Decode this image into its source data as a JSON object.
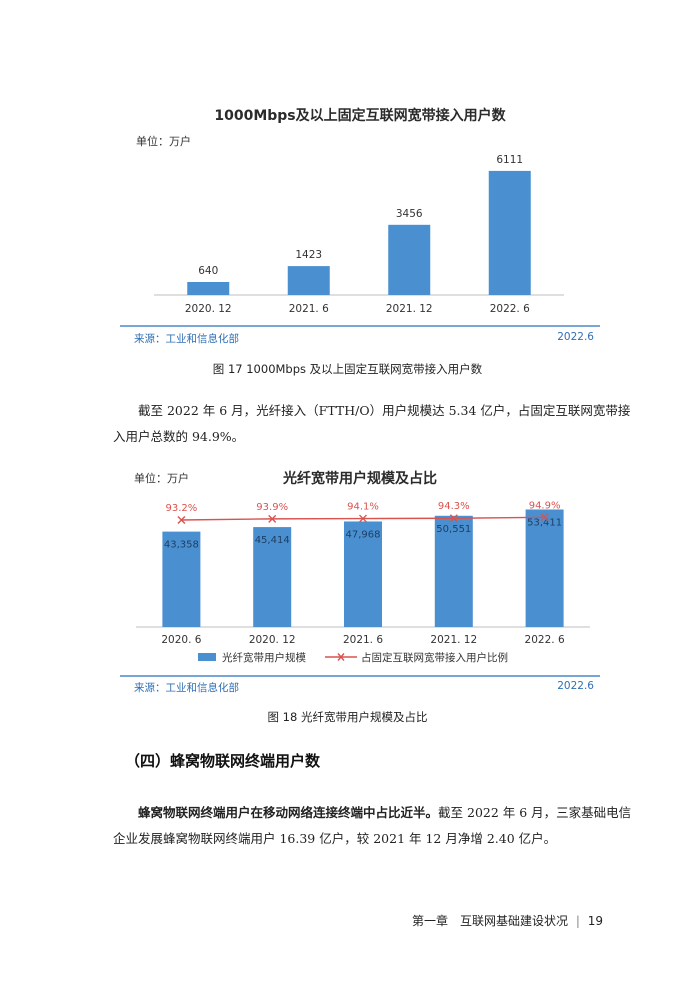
{
  "chart1": {
    "title": "1000Mbps及以上固定互联网宽带接入用户数",
    "unit": "单位：万户",
    "source": "来源：工业和信息化部",
    "source_date": "2022.6",
    "chart_data": {
      "type": "bar",
      "title": "1000Mbps及以上固定互联网宽带接入用户数",
      "categories": [
        "2020. 12",
        "2021. 6",
        "2021. 12",
        "2022. 6"
      ],
      "values": [
        640,
        1423,
        3456,
        6111
      ],
      "value_labels": [
        "640",
        "1423",
        "3456",
        "6111"
      ],
      "ylim": [
        0,
        6500
      ],
      "grid": false,
      "bar_color": "#4a90d0"
    }
  },
  "caption1": "图 17  1000Mbps 及以上固定互联网宽带接入用户数",
  "para1": "截至 2022 年 6 月，光纤接入（FTTH/O）用户规模达 5.34 亿户，占固定互联网宽带接入用户总数的 94.9%。",
  "chart2": {
    "title": "光纤宽带用户规模及占比",
    "unit": "单位：万户",
    "source": "来源：工业和信息化部",
    "source_date": "2022.6",
    "chart_data": {
      "type": "bar",
      "title": "光纤宽带用户规模及占比",
      "categories": [
        "2020. 6",
        "2020. 12",
        "2021. 6",
        "2021. 12",
        "2022. 6"
      ],
      "series": [
        {
          "name": "光纤宽带用户规模",
          "type": "bar",
          "values": [
            43358,
            45414,
            47968,
            50551,
            53411
          ],
          "labels": [
            "43,358",
            "45,414",
            "47,968",
            "50,551",
            "53,411"
          ]
        },
        {
          "name": "占固定互联网宽带接入用户比例",
          "type": "line",
          "values": [
            93.2,
            93.9,
            94.1,
            94.3,
            94.9
          ],
          "labels": [
            "93.2%",
            "93.9%",
            "94.1%",
            "94.3%",
            "94.9%"
          ]
        }
      ],
      "ylim": [
        0,
        56000
      ],
      "legend": "bottom",
      "bar_color": "#4a90d0",
      "line_color": "#d9534f"
    }
  },
  "caption2": "图 18  光纤宽带用户规模及占比",
  "section_title": "（四）蜂窝物联网终端用户数",
  "para2_bold": "蜂窝物联网终端用户在移动网络连接终端中占比近半。",
  "para2_rest": "截至 2022 年 6 月，三家基础电信企业发展蜂窝物联网终端用户 16.39 亿户，较 2021 年 12 月净增 2.40 亿户。",
  "footer": {
    "chapter": "第一章　互联网基础建设状况",
    "page": "19"
  }
}
